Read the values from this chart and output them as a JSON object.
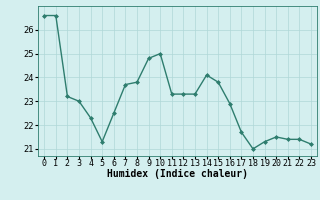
{
  "x": [
    0,
    1,
    2,
    3,
    4,
    5,
    6,
    7,
    8,
    9,
    10,
    11,
    12,
    13,
    14,
    15,
    16,
    17,
    18,
    19,
    20,
    21,
    22,
    23
  ],
  "y": [
    26.6,
    26.6,
    23.2,
    23.0,
    22.3,
    21.3,
    22.5,
    23.7,
    23.8,
    24.8,
    25.0,
    23.3,
    23.3,
    23.3,
    24.1,
    23.8,
    22.9,
    21.7,
    21.0,
    21.3,
    21.5,
    21.4,
    21.4,
    21.2
  ],
  "line_color": "#2e7d6e",
  "marker": "D",
  "marker_size": 2,
  "bg_color": "#d4efef",
  "grid_color": "#afd8d8",
  "xlabel": "Humidex (Indice chaleur)",
  "ylim": [
    20.7,
    27.0
  ],
  "yticks": [
    21,
    22,
    23,
    24,
    25,
    26
  ],
  "xlim": [
    -0.5,
    23.5
  ],
  "xlabel_fontsize": 7,
  "tick_fontsize": 6,
  "line_width": 1.0
}
